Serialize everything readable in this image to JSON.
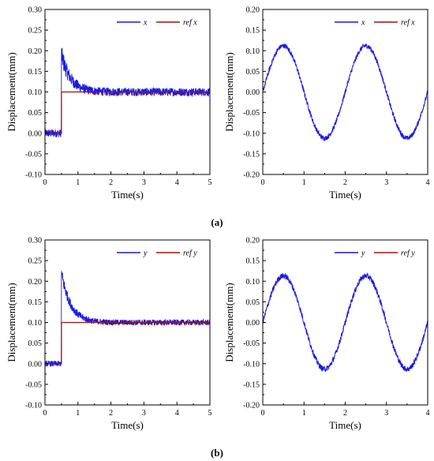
{
  "colors": {
    "measured": "#1a1adc",
    "reference": "#a21010",
    "axis": "#000000"
  },
  "panel_labels": [
    "(a)",
    "(b)"
  ],
  "chart_data": [
    {
      "type": "line",
      "xlabel": "Time(s)",
      "ylabel": "Displacement(mm)",
      "xlim": [
        0,
        5
      ],
      "ylim": [
        -0.1,
        0.3
      ],
      "xticks": [
        "0",
        "1",
        "2",
        "3",
        "4",
        "5"
      ],
      "yticks": [
        "-0.10",
        "-0.05",
        "0.00",
        "0.05",
        "0.10",
        "0.15",
        "0.20",
        "0.25",
        "0.30"
      ],
      "legend": "top-right",
      "grid": false,
      "series": [
        {
          "name": "x",
          "kind": "step_response",
          "step_time": 0.5,
          "initial": 0.0,
          "final": 0.1,
          "peak": 0.19,
          "noise": 0.01
        },
        {
          "name": "ref x",
          "kind": "step",
          "step_time": 0.5,
          "initial": 0.0,
          "final": 0.1
        }
      ]
    },
    {
      "type": "line",
      "xlabel": "Time(s)",
      "ylabel": "Displacement(mm)",
      "xlim": [
        0,
        4
      ],
      "ylim": [
        -0.2,
        0.2
      ],
      "xticks": [
        "0",
        "1",
        "2",
        "3",
        "4"
      ],
      "yticks": [
        "-0.20",
        "-0.15",
        "-0.10",
        "-0.05",
        "0.00",
        "0.05",
        "0.10",
        "0.15",
        "0.20"
      ],
      "legend": "top-right",
      "grid": false,
      "series": [
        {
          "name": "x",
          "kind": "sine",
          "amplitude": 0.112,
          "period": 2.0,
          "noise": 0.006
        },
        {
          "name": "ref x",
          "kind": "sine",
          "amplitude": 0.1,
          "period": 2.0
        }
      ]
    },
    {
      "type": "line",
      "xlabel": "Time(s)",
      "ylabel": "Displacement(mm)",
      "xlim": [
        0,
        5
      ],
      "ylim": [
        -0.1,
        0.3
      ],
      "xticks": [
        "0",
        "1",
        "2",
        "3",
        "4",
        "5"
      ],
      "yticks": [
        "-0.10",
        "-0.05",
        "0.00",
        "0.05",
        "0.10",
        "0.15",
        "0.20",
        "0.25",
        "0.30"
      ],
      "legend": "top-right",
      "grid": false,
      "series": [
        {
          "name": "y",
          "kind": "step_response",
          "step_time": 0.5,
          "initial": 0.0,
          "final": 0.1,
          "peak": 0.22,
          "noise": 0.007
        },
        {
          "name": "ref y",
          "kind": "step",
          "step_time": 0.5,
          "initial": 0.0,
          "final": 0.1
        }
      ]
    },
    {
      "type": "line",
      "xlabel": "Time(s)",
      "ylabel": "Displacement(mm)",
      "xlim": [
        0,
        4
      ],
      "ylim": [
        -0.2,
        0.2
      ],
      "xticks": [
        "0",
        "1",
        "2",
        "3",
        "4"
      ],
      "yticks": [
        "-0.20",
        "-0.15",
        "-0.10",
        "-0.05",
        "0.00",
        "0.05",
        "0.10",
        "0.15",
        "0.20"
      ],
      "legend": "top-right",
      "grid": false,
      "series": [
        {
          "name": "y",
          "kind": "sine",
          "amplitude": 0.113,
          "period": 2.0,
          "noise": 0.007
        },
        {
          "name": "ref y",
          "kind": "sine",
          "amplitude": 0.1,
          "period": 2.0
        }
      ]
    }
  ]
}
